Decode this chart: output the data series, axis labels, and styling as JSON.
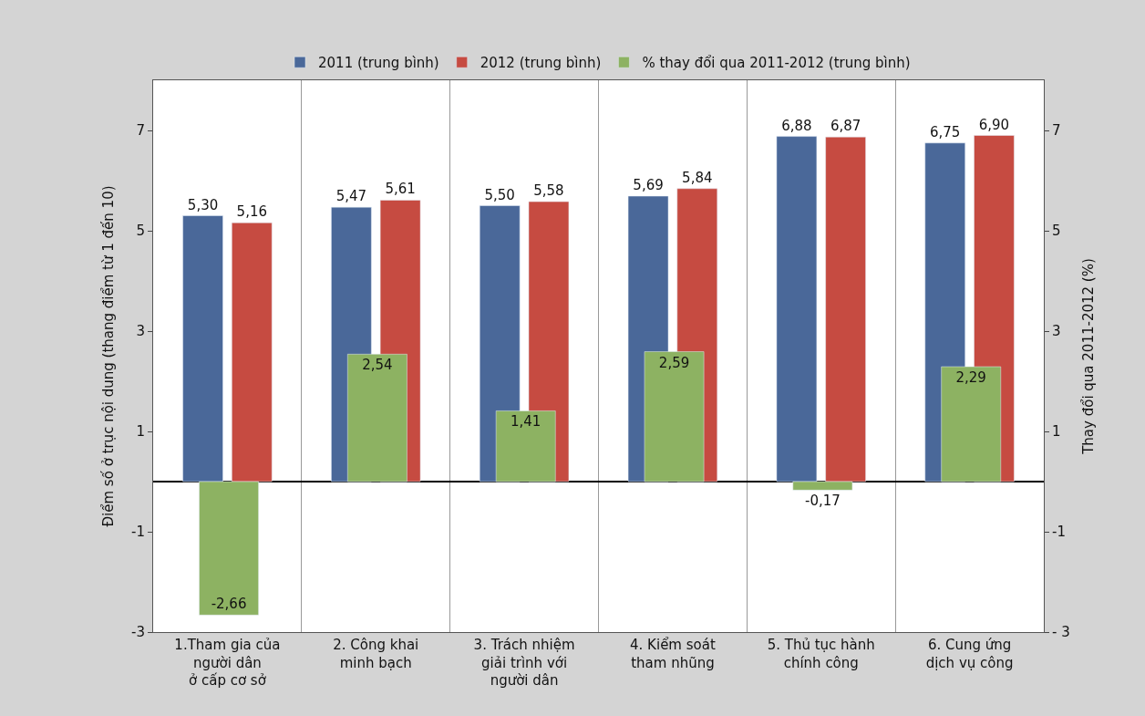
{
  "chart_data": {
    "type": "bar",
    "categories": [
      "1.Tham gia của\nngười dân\nở cấp cơ sở",
      "2. Công khai\nminh bạch",
      "3. Trách nhiệm\ngiải trình với\nngười dân",
      "4. Kiểm soát\ntham nhũng",
      "5. Thủ tục hành\nchính công",
      "6. Cung ứng\ndịch vụ công"
    ],
    "series": [
      {
        "name": "2011 (trung bình)",
        "color": "#4a6899",
        "values": [
          5.3,
          5.47,
          5.5,
          5.69,
          6.88,
          6.75
        ],
        "value_labels": [
          "5,30",
          "5,47",
          "5,50",
          "5,69",
          "6,88",
          "6,75"
        ]
      },
      {
        "name": "2012 (trung bình)",
        "color": "#c64b41",
        "values": [
          5.16,
          5.61,
          5.58,
          5.84,
          6.87,
          6.9
        ],
        "value_labels": [
          "5,16",
          "5,61",
          "5,58",
          "5,84",
          "6,87",
          "6,90"
        ]
      },
      {
        "name": "% thay đổi qua 2011-2012 (trung bình)",
        "color": "#8db262",
        "axis": "y2",
        "values": [
          -2.66,
          2.54,
          1.41,
          2.59,
          -0.17,
          2.29
        ],
        "value_labels": [
          "-2,66",
          "2,54",
          "1,41",
          "2,59",
          "-0,17",
          "2,29"
        ]
      }
    ],
    "ylabel": "Điểm số ở trục nội dung (thang điểm từ 1 đến 10)",
    "y2label": "Thay đổi qua 2011-2012 (%)",
    "ylim": [
      -3,
      8
    ],
    "yticks": [
      -3,
      -1,
      1,
      3,
      5,
      7
    ],
    "y2lim": [
      -3,
      8
    ],
    "y2ticks": [
      {
        "value": -3,
        "label": "- 3"
      },
      -1,
      1,
      3,
      5,
      7
    ],
    "grid": "x",
    "legend": "top"
  }
}
